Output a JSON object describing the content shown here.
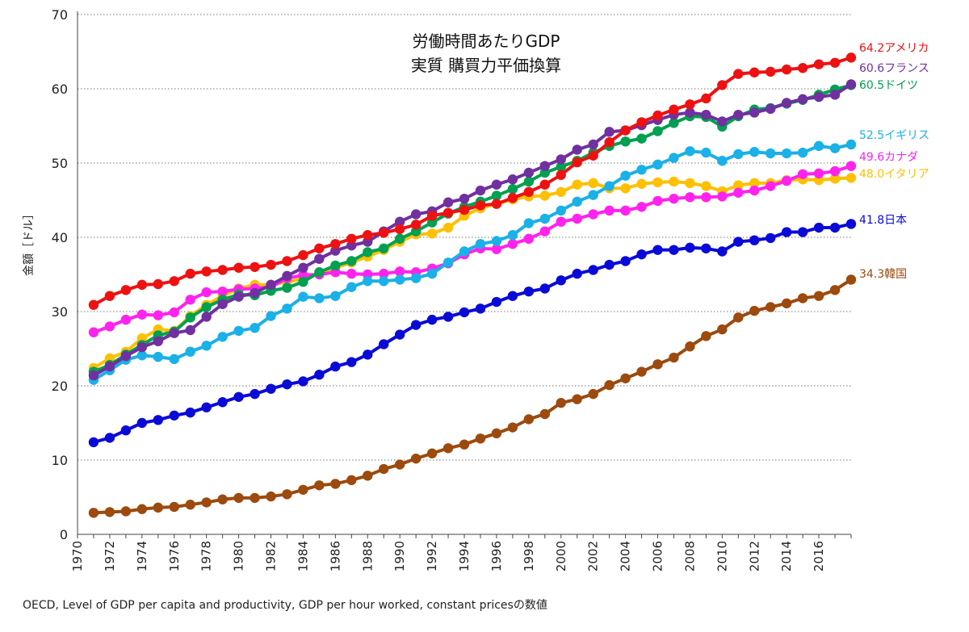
{
  "chart_data": {
    "type": "line",
    "title": [
      "労働時間あたりGDP",
      "実質 購買力平価換算"
    ],
    "ylabel": "金額［ドル］",
    "ylim": [
      0,
      70
    ],
    "yticks": [
      0,
      10,
      20,
      30,
      40,
      50,
      60,
      70
    ],
    "xlim": [
      1970,
      2018
    ],
    "xticks": [
      "1970",
      "1972",
      "1974",
      "1976",
      "1978",
      "1980",
      "1982",
      "1984",
      "1986",
      "1988",
      "1990",
      "1992",
      "1994",
      "1996",
      "1998",
      "2000",
      "2002",
      "2004",
      "2006",
      "2008",
      "2010",
      "2012",
      "2014",
      "2016"
    ],
    "grid": "horizontal dotted",
    "years": [
      1971,
      1972,
      1973,
      1974,
      1975,
      1976,
      1977,
      1978,
      1979,
      1980,
      1981,
      1982,
      1983,
      1984,
      1985,
      1986,
      1987,
      1988,
      1989,
      1990,
      1991,
      1992,
      1993,
      1994,
      1995,
      1996,
      1997,
      1998,
      1999,
      2000,
      2001,
      2002,
      2003,
      2004,
      2005,
      2006,
      2007,
      2008,
      2009,
      2010,
      2011,
      2012,
      2013,
      2014,
      2015,
      2016,
      2017,
      2018
    ],
    "series": [
      {
        "key": "korea",
        "label": "34.3韓国",
        "color": "#9c4a0e",
        "values": [
          2.9,
          3.0,
          3.1,
          3.4,
          3.6,
          3.7,
          4.0,
          4.3,
          4.7,
          4.9,
          4.9,
          5.1,
          5.4,
          6.0,
          6.6,
          6.8,
          7.3,
          7.9,
          8.8,
          9.4,
          10.2,
          10.9,
          11.6,
          12.1,
          12.9,
          13.6,
          14.4,
          15.5,
          16.2,
          17.7,
          18.2,
          18.9,
          20.1,
          21.0,
          21.9,
          22.9,
          23.8,
          25.3,
          26.7,
          27.6,
          29.2,
          30.1,
          30.6,
          31.1,
          31.8,
          32.1,
          32.9,
          34.3
        ]
      },
      {
        "key": "japan",
        "label": "41.8日本",
        "color": "#0a0ad8",
        "values": [
          12.4,
          13.0,
          14.0,
          15.0,
          15.4,
          16.0,
          16.4,
          17.1,
          17.8,
          18.5,
          18.9,
          19.6,
          20.2,
          20.6,
          21.5,
          22.6,
          23.2,
          24.2,
          25.6,
          26.9,
          28.2,
          28.9,
          29.3,
          29.9,
          30.4,
          31.3,
          32.1,
          32.7,
          33.1,
          34.2,
          35.1,
          35.6,
          36.3,
          36.8,
          37.7,
          38.3,
          38.3,
          38.6,
          38.5,
          38.1,
          39.4,
          39.6,
          39.9,
          40.7,
          40.7,
          41.3,
          41.3,
          41.8
        ]
      },
      {
        "key": "italy",
        "label": "48.0イタリア",
        "color": "#ffc000",
        "values": [
          22.4,
          23.7,
          24.6,
          26.4,
          27.6,
          27.4,
          29.4,
          30.9,
          32.1,
          33.1,
          33.6,
          33.6,
          34.0,
          34.4,
          35.2,
          35.9,
          36.6,
          37.4,
          38.3,
          39.4,
          40.4,
          40.5,
          41.3,
          42.9,
          43.9,
          44.5,
          45.1,
          45.5,
          45.6,
          46.1,
          47.1,
          47.3,
          46.6,
          46.6,
          47.2,
          47.4,
          47.5,
          47.3,
          46.9,
          46.2,
          47.0,
          47.3,
          47.3,
          47.7,
          47.8,
          47.7,
          47.9,
          48.0
        ]
      },
      {
        "key": "canada",
        "label": "49.6カナダ",
        "color": "#ff22ee",
        "values": [
          27.2,
          28.0,
          28.9,
          29.6,
          29.5,
          29.9,
          31.6,
          32.6,
          32.7,
          33.0,
          33.1,
          33.3,
          34.5,
          34.9,
          35.0,
          35.3,
          35.1,
          35.0,
          35.1,
          35.4,
          35.3,
          35.8,
          36.5,
          37.7,
          38.5,
          38.4,
          39.1,
          39.8,
          40.8,
          42.1,
          42.5,
          43.1,
          43.6,
          43.6,
          44.1,
          44.9,
          45.2,
          45.4,
          45.4,
          45.5,
          46.0,
          46.3,
          46.9,
          47.6,
          48.5,
          48.6,
          48.9,
          49.6
        ]
      },
      {
        "key": "uk",
        "label": "52.5イギリス",
        "color": "#1ab0e8",
        "values": [
          20.8,
          22.1,
          23.5,
          24.1,
          23.9,
          23.6,
          24.6,
          25.4,
          26.6,
          27.4,
          27.8,
          29.4,
          30.4,
          32.0,
          31.8,
          32.1,
          33.3,
          34.1,
          34.1,
          34.3,
          34.5,
          35.1,
          36.6,
          38.1,
          39.1,
          39.5,
          40.3,
          41.9,
          42.5,
          43.6,
          44.8,
          45.7,
          46.9,
          48.3,
          49.1,
          49.8,
          50.7,
          51.6,
          51.4,
          50.3,
          51.2,
          51.5,
          51.3,
          51.3,
          51.4,
          52.3,
          52.0,
          52.5
        ]
      },
      {
        "key": "germany",
        "label": "60.5ドイツ",
        "color": "#00a050",
        "values": [
          21.9,
          22.8,
          24.2,
          25.5,
          26.8,
          27.3,
          29.2,
          30.6,
          31.6,
          32.3,
          32.2,
          32.8,
          33.2,
          34.0,
          35.3,
          36.2,
          36.8,
          38.0,
          38.5,
          39.8,
          40.8,
          42.0,
          43.2,
          44.1,
          44.8,
          45.6,
          46.5,
          47.5,
          48.7,
          49.5,
          50.3,
          51.4,
          52.3,
          52.9,
          53.3,
          54.3,
          55.4,
          56.3,
          56.2,
          54.9,
          56.3,
          57.2,
          57.4,
          58.0,
          58.5,
          59.2,
          59.9,
          60.5
        ]
      },
      {
        "key": "france",
        "label": "60.6フランス",
        "color": "#7030a0",
        "values": [
          21.4,
          22.6,
          24.0,
          25.2,
          26.0,
          27.1,
          27.5,
          29.3,
          31.0,
          32.0,
          32.5,
          33.6,
          34.8,
          35.9,
          37.1,
          38.2,
          38.9,
          39.4,
          40.8,
          42.1,
          43.1,
          43.5,
          44.7,
          45.2,
          46.3,
          47.1,
          47.8,
          48.7,
          49.6,
          50.5,
          51.8,
          52.5,
          54.2,
          54.4,
          55.1,
          55.8,
          56.5,
          56.8,
          56.5,
          55.6,
          56.5,
          56.8,
          57.3,
          58.1,
          58.6,
          58.9,
          59.2,
          60.6
        ]
      },
      {
        "key": "usa",
        "label": "64.2アメリカ",
        "color": "#ee1111",
        "values": [
          30.9,
          32.1,
          32.9,
          33.6,
          33.7,
          34.1,
          35.1,
          35.4,
          35.6,
          35.9,
          36.0,
          36.3,
          36.8,
          37.6,
          38.5,
          39.1,
          39.8,
          40.3,
          40.6,
          41.1,
          41.7,
          42.9,
          43.3,
          43.7,
          44.3,
          44.5,
          45.3,
          46.1,
          47.1,
          48.4,
          50.1,
          51.0,
          52.8,
          54.4,
          55.5,
          56.4,
          57.2,
          57.9,
          58.7,
          60.5,
          62.0,
          62.2,
          62.3,
          62.6,
          62.8,
          63.3,
          63.5,
          64.2
        ]
      }
    ]
  },
  "source_note": "OECD, Level of GDP per capita and productivity, GDP per hour worked, constant pricesの数値"
}
